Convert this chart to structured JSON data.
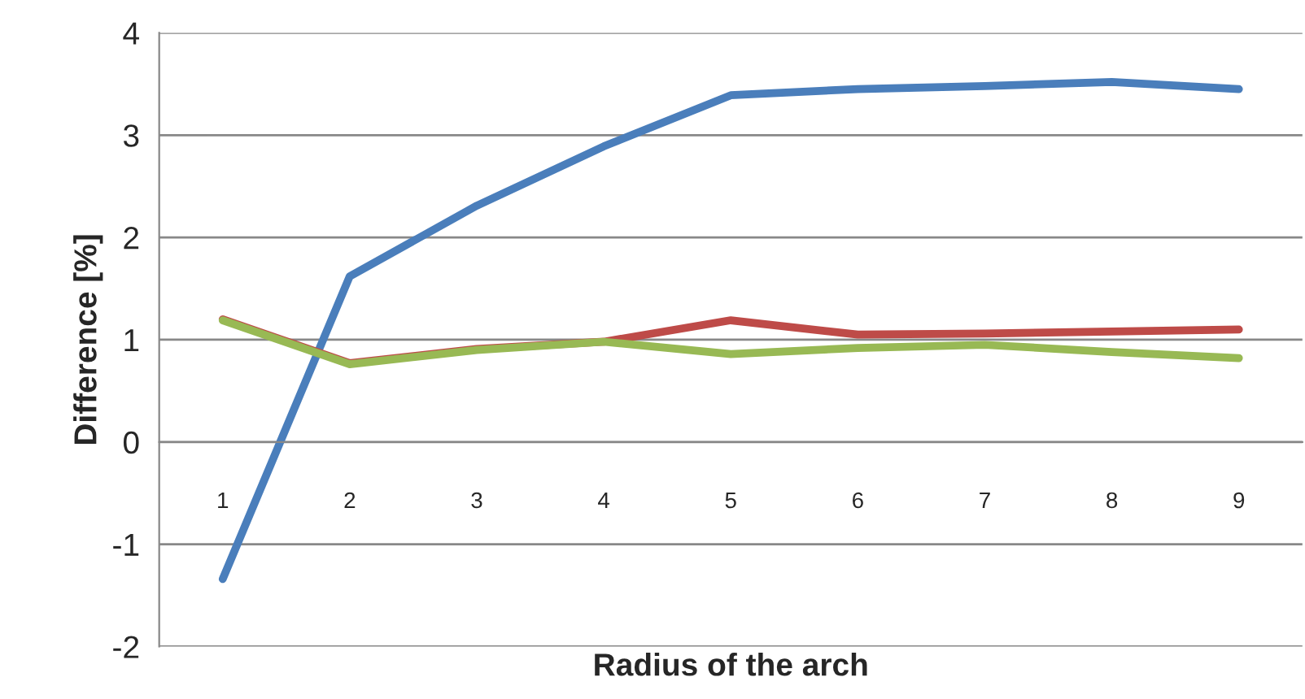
{
  "chart_data": {
    "type": "line",
    "xlabel": "Radius of the arch",
    "ylabel": "Difference [%]",
    "categories": [
      "1",
      "2",
      "3",
      "4",
      "5",
      "6",
      "7",
      "8",
      "9"
    ],
    "series": [
      {
        "color": "#4a7ebb",
        "values": [
          -1.34,
          1.62,
          2.31,
          2.89,
          3.39,
          3.45,
          3.48,
          3.52,
          3.45
        ]
      },
      {
        "color": "#be4b48",
        "values": [
          1.2,
          0.77,
          0.91,
          0.98,
          1.19,
          1.05,
          1.06,
          1.08,
          1.1
        ]
      },
      {
        "color": "#98b954",
        "values": [
          1.19,
          0.76,
          0.9,
          0.98,
          0.86,
          0.92,
          0.95,
          0.88,
          0.82
        ]
      }
    ],
    "ylim": [
      -2,
      4
    ],
    "yticks": [
      -2,
      -1,
      0,
      1,
      2,
      3,
      4
    ],
    "grid": "y",
    "legend": false,
    "marker": "none",
    "line_style": "solid"
  }
}
